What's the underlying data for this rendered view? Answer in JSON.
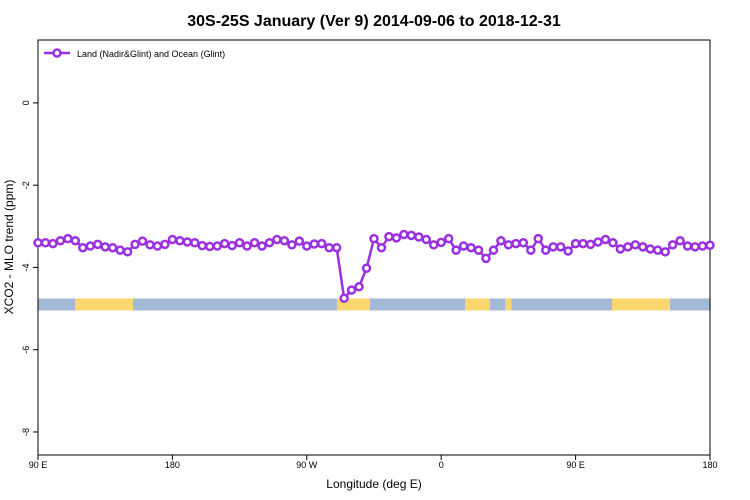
{
  "chart_data": {
    "type": "line",
    "title": "30S-25S January (Ver 9)   2014-09-06 to 2018-12-31",
    "xlabel": "Longitude (deg E)",
    "ylabel": "XCO2 - MLO trend (ppm)",
    "xlim": [
      90,
      540
    ],
    "xticks": [
      {
        "value": 90,
        "label": "90 E"
      },
      180,
      {
        "value": 270,
        "label": "90 W"
      },
      {
        "value": 360,
        "label": "0"
      },
      {
        "value": 450,
        "label": "90 E"
      },
      {
        "value": 540,
        "label": "180"
      }
    ],
    "ylim": [
      -8.56,
      1.53
    ],
    "yticks": [
      0,
      -2,
      -4,
      -6,
      -8
    ],
    "legend": "top-left",
    "x": [
      90,
      95,
      100,
      105,
      110,
      115,
      120,
      125,
      130,
      135,
      140,
      145,
      150,
      155,
      160,
      165,
      170,
      175,
      180,
      185,
      190,
      195,
      200,
      205,
      210,
      215,
      220,
      225,
      230,
      235,
      240,
      245,
      250,
      255,
      260,
      265,
      270,
      275,
      280,
      285,
      290,
      295,
      300,
      305,
      310,
      315,
      320,
      325,
      330,
      335,
      340,
      345,
      350,
      355,
      360,
      365,
      370,
      375,
      380,
      385,
      390,
      395,
      400,
      405,
      410,
      415,
      420,
      425,
      430,
      435,
      440,
      445,
      450,
      455,
      460,
      465,
      470,
      475,
      480,
      485,
      490,
      495,
      500,
      505,
      510,
      515,
      520,
      525,
      530,
      535,
      540
    ],
    "series": [
      {
        "name": "Land (Nadir&Glint) and Ocean (Glint)",
        "color": "#9b30e0",
        "values": [
          -3.4,
          -3.4,
          -3.42,
          -3.35,
          -3.3,
          -3.35,
          -3.52,
          -3.48,
          -3.44,
          -3.5,
          -3.52,
          -3.58,
          -3.62,
          -3.44,
          -3.36,
          -3.45,
          -3.48,
          -3.44,
          -3.32,
          -3.35,
          -3.38,
          -3.4,
          -3.47,
          -3.49,
          -3.48,
          -3.42,
          -3.47,
          -3.4,
          -3.48,
          -3.4,
          -3.48,
          -3.4,
          -3.32,
          -3.35,
          -3.45,
          -3.36,
          -3.48,
          -3.43,
          -3.42,
          -3.52,
          -3.52,
          -4.75,
          -4.55,
          -4.47,
          -4.02,
          -3.3,
          -3.52,
          -3.25,
          -3.28,
          -3.2,
          -3.22,
          -3.26,
          -3.32,
          -3.45,
          -3.39,
          -3.3,
          -3.58,
          -3.48,
          -3.52,
          -3.58,
          -3.78,
          -3.58,
          -3.35,
          -3.45,
          -3.42,
          -3.4,
          -3.58,
          -3.3,
          -3.58,
          -3.5,
          -3.5,
          -3.6,
          -3.42,
          -3.42,
          -3.44,
          -3.38,
          -3.32,
          -3.4,
          -3.55,
          -3.5,
          -3.45,
          -3.5,
          -3.55,
          -3.58,
          -3.62,
          -3.45,
          -3.35,
          -3.48,
          -3.5,
          -3.48,
          -3.46
        ]
      }
    ],
    "band_y": -4.9,
    "band": [
      {
        "start": 90,
        "end": 114.8,
        "color": "#a3b9d6"
      },
      {
        "start": 114.8,
        "end": 153.6,
        "color": "#fad76e"
      },
      {
        "start": 153.6,
        "end": 290.2,
        "color": "#a3b9d6"
      },
      {
        "start": 290.2,
        "end": 312.3,
        "color": "#fad76e"
      },
      {
        "start": 312.3,
        "end": 376,
        "color": "#a3b9d6"
      },
      {
        "start": 376,
        "end": 392.7,
        "color": "#fad76e"
      },
      {
        "start": 392.7,
        "end": 403,
        "color": "#a3b9d6"
      },
      {
        "start": 403,
        "end": 407,
        "color": "#fad76e"
      },
      {
        "start": 407,
        "end": 474.4,
        "color": "#a3b9d6"
      },
      {
        "start": 474.4,
        "end": 513.2,
        "color": "#fad76e"
      },
      {
        "start": 513.2,
        "end": 540,
        "color": "#a3b9d6"
      }
    ]
  }
}
